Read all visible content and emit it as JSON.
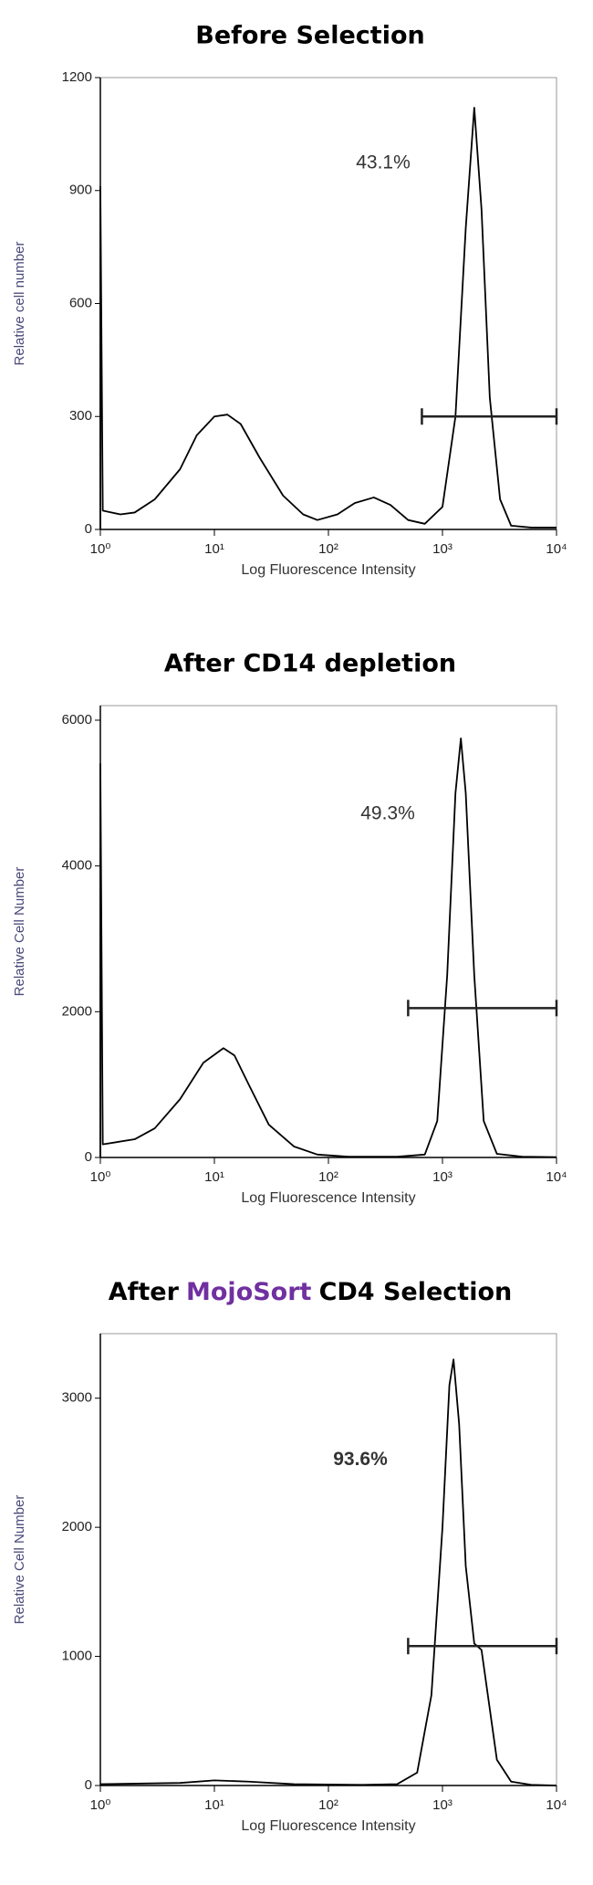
{
  "chart_data": [
    {
      "type": "line",
      "title": "Before Selection",
      "x_label": "Log Fluorescence Intensity",
      "y_label": "Relative cell number",
      "xscale": "log",
      "xlim": [
        1,
        10000
      ],
      "xticks": [
        {
          "value": 1,
          "label": "10⁰"
        },
        {
          "value": 10,
          "label": "10¹"
        },
        {
          "value": 100,
          "label": "10²"
        },
        {
          "value": 1000,
          "label": "10³"
        },
        {
          "value": 10000,
          "label": "10⁴"
        }
      ],
      "ylim": [
        0,
        1200
      ],
      "yticks": [
        0,
        300,
        600,
        900,
        1200
      ],
      "color": "#000000",
      "x": [
        1,
        1,
        1.05,
        1.5,
        2,
        3,
        5,
        7,
        10,
        13,
        17,
        25,
        40,
        60,
        80,
        120,
        170,
        250,
        350,
        500,
        700,
        1000,
        1300,
        1600,
        1900,
        2200,
        2600,
        3200,
        4000,
        6000,
        10000
      ],
      "values": [
        0,
        910,
        50,
        40,
        45,
        80,
        160,
        250,
        300,
        305,
        280,
        190,
        90,
        40,
        25,
        40,
        70,
        85,
        65,
        25,
        15,
        60,
        300,
        800,
        1120,
        850,
        350,
        80,
        10,
        5,
        5
      ],
      "annotation": "43.1%",
      "gate": {
        "x": [
          660,
          10000
        ],
        "y": 300
      }
    },
    {
      "type": "line",
      "title": "After CD14 depletion",
      "x_label": "Log Fluorescence Intensity",
      "y_label": "Relative Cell Number",
      "xscale": "log",
      "xlim": [
        1,
        10000
      ],
      "xticks": [
        {
          "value": 1,
          "label": "10⁰"
        },
        {
          "value": 10,
          "label": "10¹"
        },
        {
          "value": 100,
          "label": "10²"
        },
        {
          "value": 1000,
          "label": "10³"
        },
        {
          "value": 10000,
          "label": "10⁴"
        }
      ],
      "ylim": [
        0,
        6200
      ],
      "yticks": [
        0,
        2000,
        4000,
        6000
      ],
      "color": "#000000",
      "x": [
        1,
        1,
        1.05,
        2,
        3,
        5,
        8,
        12,
        15,
        20,
        30,
        50,
        80,
        150,
        400,
        700,
        900,
        1100,
        1300,
        1450,
        1600,
        1900,
        2300,
        3000,
        5000,
        10000
      ],
      "values": [
        0,
        5400,
        180,
        250,
        400,
        800,
        1300,
        1500,
        1400,
        1000,
        450,
        150,
        40,
        10,
        10,
        40,
        500,
        2500,
        5000,
        5750,
        5000,
        2500,
        500,
        50,
        10,
        5
      ],
      "annotation": "49.3%",
      "gate": {
        "x": [
          500,
          10000
        ],
        "y": 2050
      }
    },
    {
      "type": "line",
      "title_parts": [
        {
          "text": "After",
          "color": "#000000"
        },
        {
          "text": "MojoSort",
          "color": "#7030a0"
        },
        {
          "text": "CD4 Selection",
          "color": "#000000"
        }
      ],
      "x_label": "Log Fluorescence Intensity",
      "y_label": "Relative Cell Number",
      "xscale": "log",
      "xlim": [
        1,
        10000
      ],
      "xticks": [
        {
          "value": 1,
          "label": "10⁰"
        },
        {
          "value": 10,
          "label": "10¹"
        },
        {
          "value": 100,
          "label": "10²"
        },
        {
          "value": 1000,
          "label": "10³"
        },
        {
          "value": 10000,
          "label": "10⁴"
        }
      ],
      "ylim": [
        0,
        3500
      ],
      "yticks": [
        0,
        1000,
        2000,
        3000
      ],
      "color": "#000000",
      "x": [
        1,
        5,
        10,
        20,
        50,
        200,
        400,
        600,
        800,
        1000,
        1150,
        1250,
        1400,
        1600,
        1900,
        2200,
        2500,
        3000,
        4000,
        6000,
        10000
      ],
      "values": [
        10,
        20,
        40,
        30,
        10,
        5,
        10,
        100,
        700,
        2000,
        3100,
        3300,
        2800,
        1700,
        1100,
        1050,
        700,
        200,
        30,
        5,
        0
      ],
      "annotation": "93.6%",
      "annotation_bold": true,
      "gate": {
        "x": [
          500,
          10000
        ],
        "y": 1080
      }
    }
  ]
}
